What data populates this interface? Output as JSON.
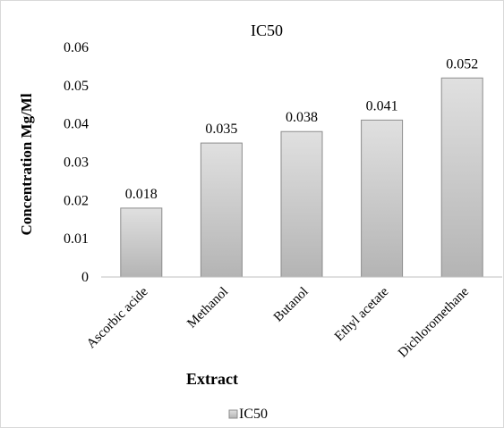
{
  "chart_data": {
    "type": "bar",
    "title": "IC50",
    "xlabel": "Extract",
    "ylabel": "Concentration Mg/Ml",
    "categories": [
      "Ascorbic acide",
      "Methanol",
      "Butanol",
      "Ethyl acetate",
      "Dichloromethane"
    ],
    "series": [
      {
        "name": "IC50",
        "values": [
          0.018,
          0.035,
          0.038,
          0.041,
          0.052
        ],
        "data_labels": [
          "0.018",
          "0.035",
          "0.038",
          "0.041",
          "0.052"
        ]
      }
    ],
    "ylim": [
      0,
      0.06
    ],
    "yticks": [
      0,
      0.01,
      0.02,
      0.03,
      0.04,
      0.05,
      0.06
    ],
    "ytick_labels": [
      "0",
      "0.01",
      "0.02",
      "0.03",
      "0.04",
      "0.05",
      "0.06"
    ],
    "grid": false,
    "legend": {
      "placement": "bottom",
      "entries": [
        "IC50"
      ]
    },
    "colors": {
      "bar_top": "#e0e0e0",
      "bar_bottom": "#b4b4b4",
      "bar_border": "#8c8c8c",
      "axis": "#bfbfbf"
    }
  }
}
